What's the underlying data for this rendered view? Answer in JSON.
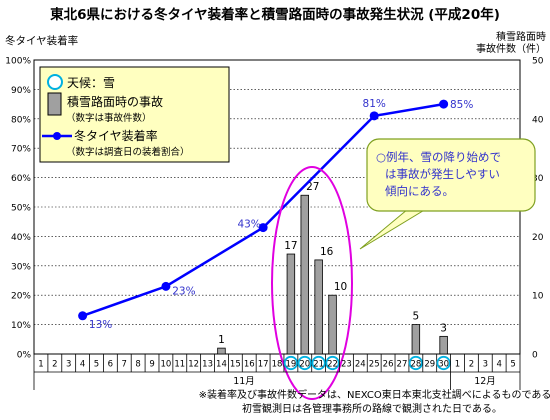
{
  "chart_data": {
    "type": "bar+line",
    "title": "東北6県における冬タイヤ装着率と積雪路面時の事故発生状況 (平成20年)",
    "y_left": {
      "label": "冬タイヤ装着率",
      "min": 0,
      "max": 100,
      "step": 10,
      "unit": "%",
      "ticks": [
        "0%",
        "10%",
        "20%",
        "30%",
        "40%",
        "50%",
        "60%",
        "70%",
        "80%",
        "90%",
        "100%"
      ]
    },
    "y_right": {
      "label_line1": "積雪路面時",
      "label_line2": "事故件数（件）",
      "min": 0,
      "max": 50,
      "step": 10,
      "ticks": [
        "0",
        "10",
        "20",
        "30",
        "40",
        "50"
      ]
    },
    "x_days": [
      "1",
      "2",
      "3",
      "4",
      "5",
      "6",
      "7",
      "8",
      "9",
      "10",
      "11",
      "12",
      "13",
      "14",
      "15",
      "16",
      "17",
      "18",
      "19",
      "20",
      "21",
      "22",
      "23",
      "24",
      "25",
      "26",
      "27",
      "28",
      "29",
      "30",
      "1",
      "2",
      "3",
      "4",
      "5"
    ],
    "x_month_labels": {
      "nov": "11月",
      "dec": "12月"
    },
    "snow_day_indices": [
      18,
      19,
      20,
      21,
      27,
      29
    ],
    "accidents": [
      {
        "day_index": 13,
        "value": 1,
        "label": "1"
      },
      {
        "day_index": 18,
        "value": 17,
        "label": "17"
      },
      {
        "day_index": 19,
        "value": 27,
        "label": "27"
      },
      {
        "day_index": 20,
        "value": 16,
        "label": "16"
      },
      {
        "day_index": 21,
        "value": 10,
        "label": "10"
      },
      {
        "day_index": 27,
        "value": 5,
        "label": "5"
      },
      {
        "day_index": 29,
        "value": 3,
        "label": "3"
      }
    ],
    "tire_rate": [
      {
        "day_index": 3,
        "value": 13,
        "label": "13%"
      },
      {
        "day_index": 9,
        "value": 23,
        "label": "23%"
      },
      {
        "day_index": 16,
        "value": 43,
        "label": "43%"
      },
      {
        "day_index": 24,
        "value": 81,
        "label": "81%"
      },
      {
        "day_index": 29,
        "value": 85,
        "label": "85%"
      }
    ],
    "legend": {
      "snow": "天候：雪",
      "accident": "積雪路面時の事故",
      "accident_note": "（数字は事故件数）",
      "tire": "冬タイヤ装着率",
      "tire_note": "（数字は調査日の装着割合）"
    },
    "callout": [
      "○例年、雪の降り始めで",
      "は事故が発生しやすい",
      "傾向にある。"
    ],
    "footnotes": [
      "※装着率及び事故件数データは、NEXCO東日本東北支社調べによるものである。",
      "初雪観測日は各管理事務所の路線で観測された日である。"
    ],
    "colors": {
      "line": "#0000ff",
      "bar_fill": "#a0a0a0",
      "snow_circle": "#00b0e0",
      "ellipse": "#e000e0",
      "legend_bg": "#ffffc0",
      "callout_bg": "#ffffc0",
      "label_text": "#3333cc"
    }
  }
}
